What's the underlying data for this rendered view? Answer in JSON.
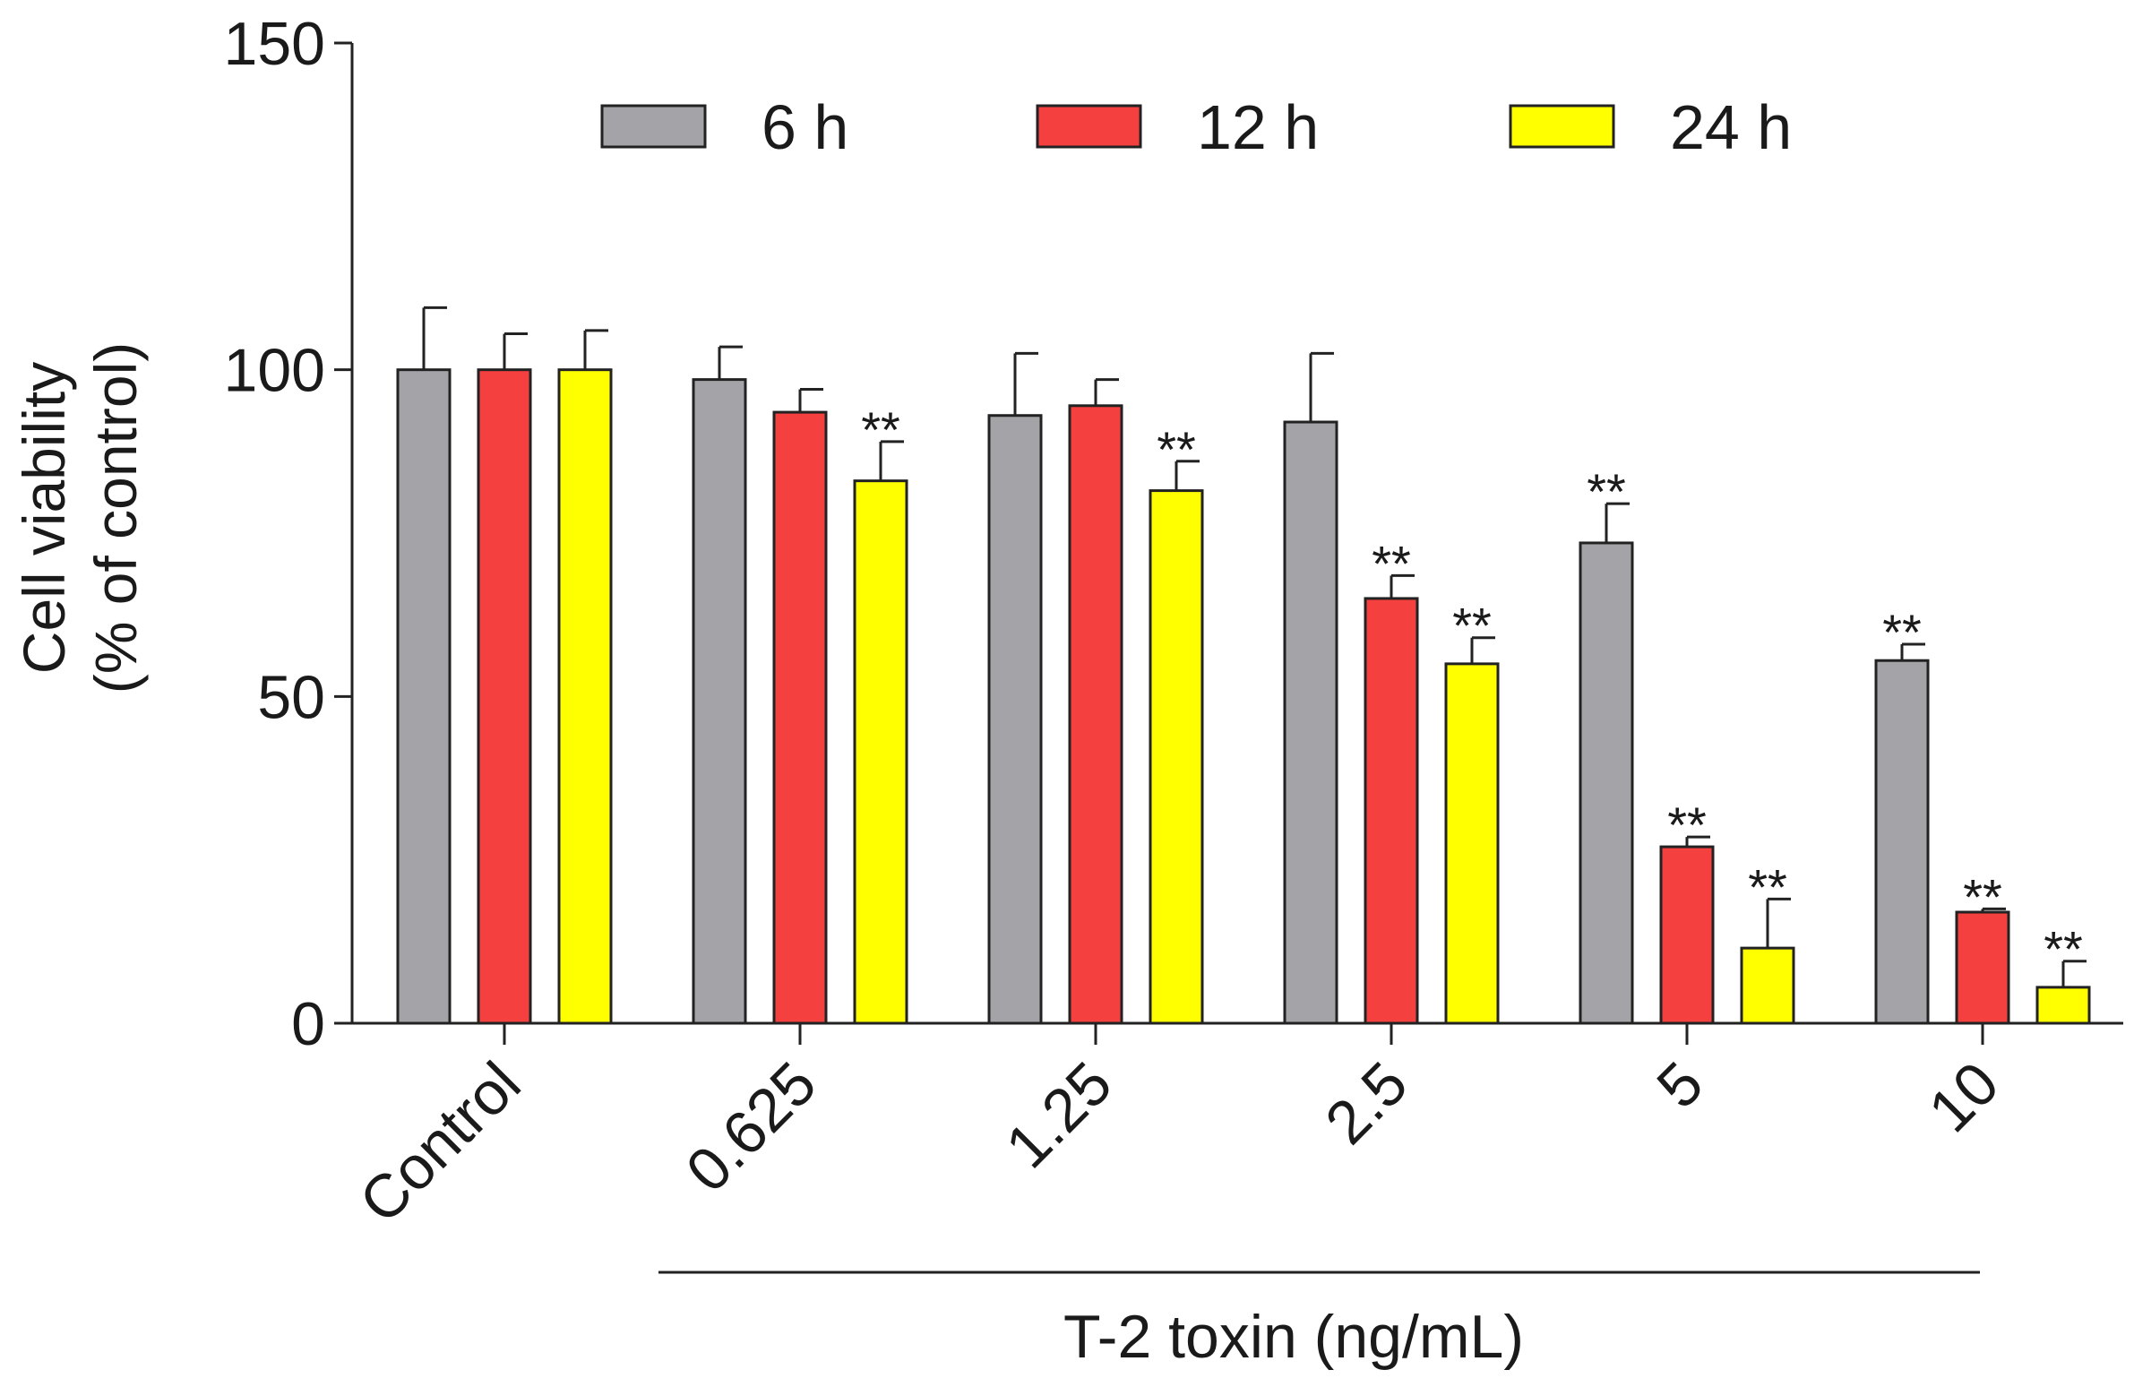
{
  "chart_data": {
    "type": "bar",
    "title": "",
    "xlabel": "T-2 toxin (ng/mL)",
    "ylabel_lines": [
      "Cell viability",
      "(% of control)"
    ],
    "ylim": [
      0,
      150
    ],
    "yticks": [
      0,
      50,
      100,
      150
    ],
    "categories": [
      "Control",
      "0.625",
      "1.25",
      "2.5",
      "5",
      "10"
    ],
    "xlabel_bracket_from": "0.625",
    "xlabel_bracket_to": "10",
    "legend_position": "top",
    "grid": false,
    "series": [
      {
        "name": "6 h",
        "color": "#a3a3a8",
        "values": [
          100,
          98.5,
          93,
          92,
          73.5,
          55.5
        ],
        "errors": [
          9.5,
          5,
          9.5,
          10.5,
          6,
          2.5
        ],
        "significance": [
          "",
          "",
          "",
          "",
          "**",
          "**"
        ]
      },
      {
        "name": "12 h",
        "color": "#f54040",
        "values": [
          100,
          93.5,
          94.5,
          65,
          27,
          17
        ],
        "errors": [
          5.5,
          3.5,
          4,
          3.5,
          1.5,
          0.5
        ],
        "significance": [
          "",
          "",
          "",
          "**",
          "**",
          "**"
        ]
      },
      {
        "name": "24 h",
        "color": "#ffff00",
        "values": [
          100,
          83,
          81.5,
          55,
          11.5,
          5.5
        ],
        "errors": [
          6,
          6,
          4.5,
          4,
          7.5,
          4
        ],
        "significance": [
          "",
          "**",
          "**",
          "**",
          "**",
          "**"
        ]
      }
    ]
  }
}
